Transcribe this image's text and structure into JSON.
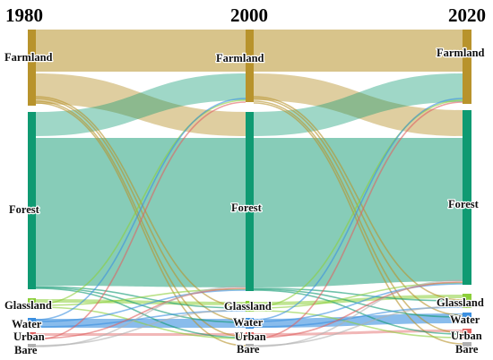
{
  "years": [
    "1980",
    "2000",
    "2020"
  ],
  "categories": [
    {
      "key": "farmland",
      "label": "Farmland",
      "color": "#b8932c"
    },
    {
      "key": "forest",
      "label": "Forest",
      "color": "#0f9a72"
    },
    {
      "key": "glassland",
      "label": "Glassland",
      "color": "#8ccf3a"
    },
    {
      "key": "water",
      "label": "Water",
      "color": "#3b8fe0"
    },
    {
      "key": "urban",
      "label": "Urban",
      "color": "#e06060"
    },
    {
      "key": "bare",
      "label": "Bare",
      "color": "#b0b0b0"
    }
  ]
}
